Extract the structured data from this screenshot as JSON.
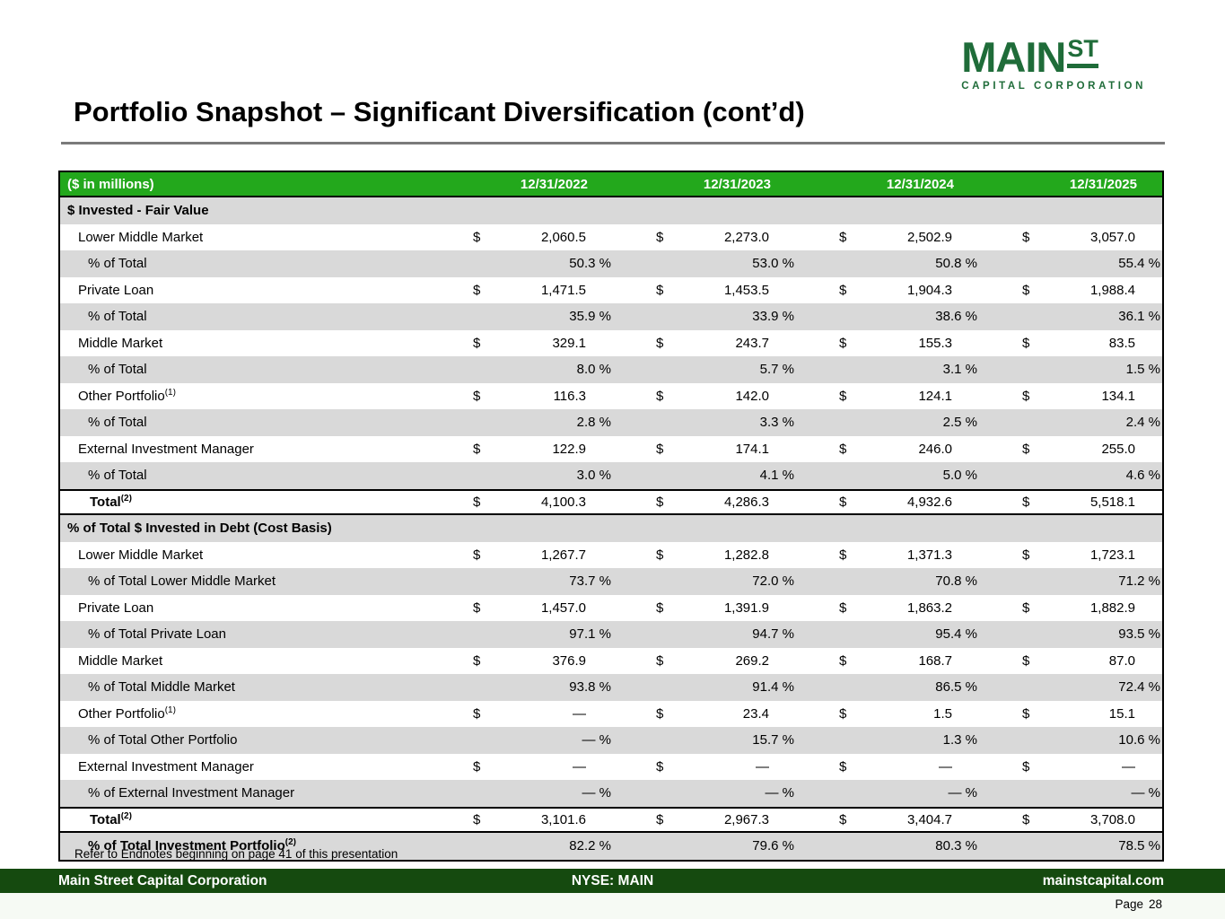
{
  "logo": {
    "main": "MAIN",
    "st": "ST",
    "subtitle": "CAPITAL CORPORATION"
  },
  "title": "Portfolio Snapshot – Significant Diversification (cont’d)",
  "colors": {
    "table_header_green": "#23A81C",
    "footer_bar_green": "#154A0F",
    "logo_green": "#1F6C39",
    "striped_row_gray": "#D9D9D9"
  },
  "table": {
    "unit_label": "($ in millions)",
    "columns": [
      "12/31/2022",
      "12/31/2023",
      "12/31/2024",
      "12/31/2025"
    ],
    "rows": [
      {
        "style": "section",
        "label": "$ Invested - Fair Value",
        "sup": "",
        "values": []
      },
      {
        "style": "dollar",
        "label": "Lower Middle Market",
        "sup": "",
        "values": [
          "2,060.5",
          "2,273.0",
          "2,502.9",
          "3,057.0"
        ]
      },
      {
        "style": "percent",
        "label": "% of Total",
        "sup": "",
        "values": [
          "50.3 %",
          "53.0 %",
          "50.8 %",
          "55.4 %"
        ]
      },
      {
        "style": "dollar",
        "label": "Private Loan",
        "sup": "",
        "values": [
          "1,471.5",
          "1,453.5",
          "1,904.3",
          "1,988.4"
        ]
      },
      {
        "style": "percent",
        "label": "% of Total",
        "sup": "",
        "values": [
          "35.9 %",
          "33.9 %",
          "38.6 %",
          "36.1 %"
        ]
      },
      {
        "style": "dollar",
        "label": "Middle Market",
        "sup": "",
        "values": [
          "329.1",
          "243.7",
          "155.3",
          "83.5"
        ]
      },
      {
        "style": "percent",
        "label": "% of Total",
        "sup": "",
        "values": [
          "8.0 %",
          "5.7 %",
          "3.1 %",
          "1.5 %"
        ]
      },
      {
        "style": "dollar",
        "label": "Other Portfolio",
        "sup": "(1)",
        "values": [
          "116.3",
          "142.0",
          "124.1",
          "134.1"
        ]
      },
      {
        "style": "percent",
        "label": "% of Total",
        "sup": "",
        "values": [
          "2.8 %",
          "3.3 %",
          "2.5 %",
          "2.4 %"
        ]
      },
      {
        "style": "dollar",
        "label": "External Investment Manager",
        "sup": "",
        "values": [
          "122.9",
          "174.1",
          "246.0",
          "255.0"
        ]
      },
      {
        "style": "percent",
        "label": "% of Total",
        "sup": "",
        "values": [
          "3.0 %",
          "4.1 %",
          "5.0 %",
          "4.6 %"
        ]
      },
      {
        "style": "total",
        "label": "Total",
        "sup": "(2)",
        "values": [
          "4,100.3",
          "4,286.3",
          "4,932.6",
          "5,518.1"
        ]
      },
      {
        "style": "section",
        "label": "% of Total $ Invested in Debt (Cost Basis)",
        "sup": "",
        "values": []
      },
      {
        "style": "dollar",
        "label": "Lower Middle Market",
        "sup": "",
        "values": [
          "1,267.7",
          "1,282.8",
          "1,371.3",
          "1,723.1"
        ]
      },
      {
        "style": "percent",
        "label": "% of Total Lower Middle Market",
        "sup": "",
        "values": [
          "73.7 %",
          "72.0 %",
          "70.8 %",
          "71.2 %"
        ]
      },
      {
        "style": "dollar",
        "label": "Private Loan",
        "sup": "",
        "values": [
          "1,457.0",
          "1,391.9",
          "1,863.2",
          "1,882.9"
        ]
      },
      {
        "style": "percent",
        "label": "% of Total Private Loan",
        "sup": "",
        "values": [
          "97.1 %",
          "94.7 %",
          "95.4 %",
          "93.5 %"
        ]
      },
      {
        "style": "dollar",
        "label": "Middle Market",
        "sup": "",
        "values": [
          "376.9",
          "269.2",
          "168.7",
          "87.0"
        ]
      },
      {
        "style": "percent",
        "label": "% of Total Middle Market",
        "sup": "",
        "values": [
          "93.8 %",
          "91.4 %",
          "86.5 %",
          "72.4 %"
        ]
      },
      {
        "style": "dollar",
        "label": "Other Portfolio",
        "sup": "(1)",
        "values": [
          "—",
          "23.4",
          "1.5",
          "15.1"
        ]
      },
      {
        "style": "percent",
        "label": "% of Total Other Portfolio",
        "sup": "",
        "values": [
          "— %",
          "15.7 %",
          "1.3 %",
          "10.6 %"
        ]
      },
      {
        "style": "dollar",
        "label": "External Investment Manager",
        "sup": "",
        "values": [
          "—",
          "—",
          "—",
          "—"
        ]
      },
      {
        "style": "percent",
        "label": "% of External Investment Manager",
        "sup": "",
        "values": [
          "— %",
          "— %",
          "— %",
          "— %"
        ]
      },
      {
        "style": "total",
        "label": "Total",
        "sup": "(2)",
        "values": [
          "3,101.6",
          "2,967.3",
          "3,404.7",
          "3,708.0"
        ]
      },
      {
        "style": "percent_total",
        "label": "% of Total Investment Portfolio",
        "sup": "(2)",
        "values": [
          "82.2 %",
          "79.6 %",
          "80.3 %",
          "78.5 %"
        ]
      }
    ]
  },
  "footnote": "Refer to Endnotes beginning on page 41 of this presentation",
  "footer": {
    "left": "Main Street Capital Corporation",
    "center": "NYSE: MAIN",
    "right": "mainstcapital.com",
    "page_label": "Page",
    "page_number": "28"
  }
}
